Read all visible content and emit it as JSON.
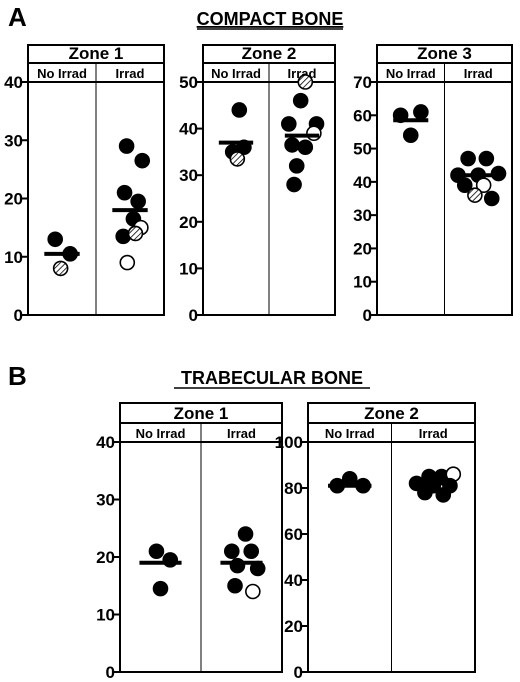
{
  "panel_a": {
    "letter": "A",
    "title": "COMPACT BONE"
  },
  "panel_b": {
    "letter": "B",
    "title": "TRABECULAR BONE"
  },
  "colors": {
    "ink": "#000000",
    "filled": "#000000",
    "open": "#ffffff",
    "hatched": "#b0b0b0"
  },
  "chart_data": [
    {
      "type": "scatter",
      "panel": "A",
      "title": "Zone 1",
      "categories": [
        "No Irrad",
        "Irrad"
      ],
      "ylim": [
        0,
        40
      ],
      "yticks": [
        0,
        10,
        20,
        30,
        40
      ],
      "means": [
        10.5,
        18
      ],
      "points": [
        {
          "group": 0,
          "x": 0.4,
          "y": 13.0,
          "fill": "filled"
        },
        {
          "group": 0,
          "x": 0.62,
          "y": 10.5,
          "fill": "filled"
        },
        {
          "group": 0,
          "x": 0.48,
          "y": 8.0,
          "fill": "hatched"
        },
        {
          "group": 1,
          "x": 0.45,
          "y": 29.0,
          "fill": "filled"
        },
        {
          "group": 1,
          "x": 0.68,
          "y": 26.5,
          "fill": "filled"
        },
        {
          "group": 1,
          "x": 0.42,
          "y": 21.0,
          "fill": "filled"
        },
        {
          "group": 1,
          "x": 0.62,
          "y": 19.5,
          "fill": "filled"
        },
        {
          "group": 1,
          "x": 0.55,
          "y": 16.5,
          "fill": "filled"
        },
        {
          "group": 1,
          "x": 0.4,
          "y": 13.5,
          "fill": "filled"
        },
        {
          "group": 1,
          "x": 0.66,
          "y": 15.0,
          "fill": "open"
        },
        {
          "group": 1,
          "x": 0.58,
          "y": 14.0,
          "fill": "hatched"
        },
        {
          "group": 1,
          "x": 0.46,
          "y": 9.0,
          "fill": "open"
        }
      ]
    },
    {
      "type": "scatter",
      "panel": "A",
      "title": "Zone 2",
      "categories": [
        "No Irrad",
        "Irrad"
      ],
      "ylim": [
        0,
        50
      ],
      "yticks": [
        0,
        10,
        20,
        30,
        40,
        50
      ],
      "means": [
        37,
        38.5
      ],
      "points": [
        {
          "group": 0,
          "x": 0.55,
          "y": 44.0,
          "fill": "filled"
        },
        {
          "group": 0,
          "x": 0.62,
          "y": 36.0,
          "fill": "filled"
        },
        {
          "group": 0,
          "x": 0.45,
          "y": 35.0,
          "fill": "filled"
        },
        {
          "group": 0,
          "x": 0.52,
          "y": 33.5,
          "fill": "hatched"
        },
        {
          "group": 1,
          "x": 0.55,
          "y": 50.0,
          "fill": "hatched"
        },
        {
          "group": 1,
          "x": 0.48,
          "y": 46.0,
          "fill": "filled"
        },
        {
          "group": 1,
          "x": 0.3,
          "y": 41.0,
          "fill": "filled"
        },
        {
          "group": 1,
          "x": 0.72,
          "y": 41.0,
          "fill": "filled"
        },
        {
          "group": 1,
          "x": 0.35,
          "y": 36.5,
          "fill": "filled"
        },
        {
          "group": 1,
          "x": 0.55,
          "y": 36.0,
          "fill": "filled"
        },
        {
          "group": 1,
          "x": 0.68,
          "y": 39.0,
          "fill": "open"
        },
        {
          "group": 1,
          "x": 0.42,
          "y": 32.0,
          "fill": "filled"
        },
        {
          "group": 1,
          "x": 0.38,
          "y": 28.0,
          "fill": "filled"
        }
      ]
    },
    {
      "type": "scatter",
      "panel": "A",
      "title": "Zone 3",
      "categories": [
        "No Irrad",
        "Irrad"
      ],
      "ylim": [
        0,
        70
      ],
      "yticks": [
        0,
        10,
        20,
        30,
        40,
        50,
        60,
        70
      ],
      "means": [
        58.5,
        42
      ],
      "points": [
        {
          "group": 0,
          "x": 0.35,
          "y": 60.0,
          "fill": "filled"
        },
        {
          "group": 0,
          "x": 0.65,
          "y": 61.0,
          "fill": "filled"
        },
        {
          "group": 0,
          "x": 0.5,
          "y": 54.0,
          "fill": "filled"
        },
        {
          "group": 1,
          "x": 0.35,
          "y": 47.0,
          "fill": "filled"
        },
        {
          "group": 1,
          "x": 0.62,
          "y": 47.0,
          "fill": "filled"
        },
        {
          "group": 1,
          "x": 0.2,
          "y": 42.0,
          "fill": "filled"
        },
        {
          "group": 1,
          "x": 0.8,
          "y": 42.5,
          "fill": "filled"
        },
        {
          "group": 1,
          "x": 0.5,
          "y": 42.0,
          "fill": "filled"
        },
        {
          "group": 1,
          "x": 0.3,
          "y": 39.0,
          "fill": "filled"
        },
        {
          "group": 1,
          "x": 0.58,
          "y": 39.0,
          "fill": "open"
        },
        {
          "group": 1,
          "x": 0.45,
          "y": 36.0,
          "fill": "hatched"
        },
        {
          "group": 1,
          "x": 0.7,
          "y": 35.0,
          "fill": "filled"
        }
      ]
    },
    {
      "type": "scatter",
      "panel": "B",
      "title": "Zone 1",
      "categories": [
        "No Irrad",
        "Irrad"
      ],
      "ylim": [
        0,
        40
      ],
      "yticks": [
        0,
        10,
        20,
        30,
        40
      ],
      "means": [
        19,
        19
      ],
      "points": [
        {
          "group": 0,
          "x": 0.45,
          "y": 21.0,
          "fill": "filled"
        },
        {
          "group": 0,
          "x": 0.62,
          "y": 19.5,
          "fill": "filled"
        },
        {
          "group": 0,
          "x": 0.5,
          "y": 14.5,
          "fill": "filled"
        },
        {
          "group": 1,
          "x": 0.55,
          "y": 24.0,
          "fill": "filled"
        },
        {
          "group": 1,
          "x": 0.38,
          "y": 21.0,
          "fill": "filled"
        },
        {
          "group": 1,
          "x": 0.62,
          "y": 21.0,
          "fill": "filled"
        },
        {
          "group": 1,
          "x": 0.45,
          "y": 18.5,
          "fill": "filled"
        },
        {
          "group": 1,
          "x": 0.7,
          "y": 18.0,
          "fill": "filled"
        },
        {
          "group": 1,
          "x": 0.42,
          "y": 15.0,
          "fill": "filled"
        },
        {
          "group": 1,
          "x": 0.64,
          "y": 14.0,
          "fill": "open"
        }
      ]
    },
    {
      "type": "scatter",
      "panel": "B",
      "title": "Zone 2",
      "categories": [
        "No Irrad",
        "Irrad"
      ],
      "ylim": [
        0,
        100
      ],
      "yticks": [
        0,
        20,
        40,
        60,
        80,
        100
      ],
      "means": [
        81,
        82
      ],
      "points": [
        {
          "group": 0,
          "x": 0.5,
          "y": 84.0,
          "fill": "filled"
        },
        {
          "group": 0,
          "x": 0.35,
          "y": 81.0,
          "fill": "filled"
        },
        {
          "group": 0,
          "x": 0.66,
          "y": 81.0,
          "fill": "filled"
        },
        {
          "group": 1,
          "x": 0.45,
          "y": 85.0,
          "fill": "filled"
        },
        {
          "group": 1,
          "x": 0.6,
          "y": 85.0,
          "fill": "filled"
        },
        {
          "group": 1,
          "x": 0.74,
          "y": 86.0,
          "fill": "open"
        },
        {
          "group": 1,
          "x": 0.3,
          "y": 82.0,
          "fill": "filled"
        },
        {
          "group": 1,
          "x": 0.5,
          "y": 81.0,
          "fill": "filled"
        },
        {
          "group": 1,
          "x": 0.7,
          "y": 81.0,
          "fill": "filled"
        },
        {
          "group": 1,
          "x": 0.4,
          "y": 78.0,
          "fill": "filled"
        },
        {
          "group": 1,
          "x": 0.62,
          "y": 77.0,
          "fill": "filled"
        }
      ]
    }
  ]
}
